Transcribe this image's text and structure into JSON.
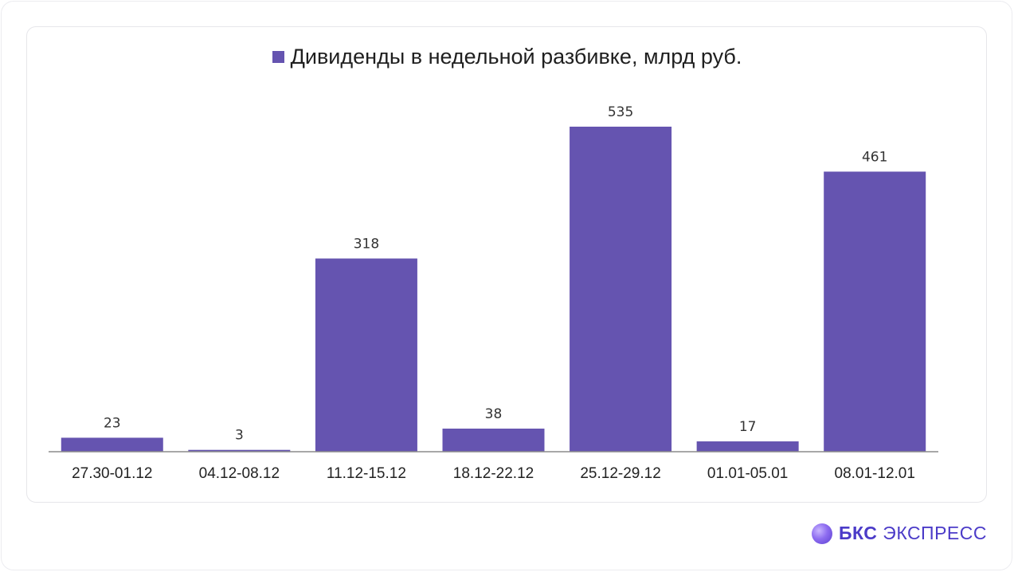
{
  "chart_data": {
    "type": "bar",
    "title": "",
    "legend": {
      "label": "Дивиденды в недельной разбивке, млрд руб.",
      "placement": "top-center"
    },
    "categories": [
      "27.30-01.12",
      "04.12-08.12",
      "11.12-15.12",
      "18.12-22.12",
      "25.12-29.12",
      "01.01-05.01",
      "08.01-12.01"
    ],
    "series": [
      {
        "name": "Дивиденды в недельной разбивке, млрд руб.",
        "values": [
          23,
          3,
          318,
          38,
          535,
          17,
          461
        ]
      }
    ],
    "data_labels": [
      "23",
      "3",
      "318",
      "38",
      "535",
      "17",
      "461"
    ],
    "xlabel": "",
    "ylabel": "",
    "ylim": [
      0,
      535
    ],
    "grid": false,
    "color": "#6554b0"
  },
  "brand": {
    "bold": "БКС",
    "light": "ЭКСПРЕСС"
  }
}
